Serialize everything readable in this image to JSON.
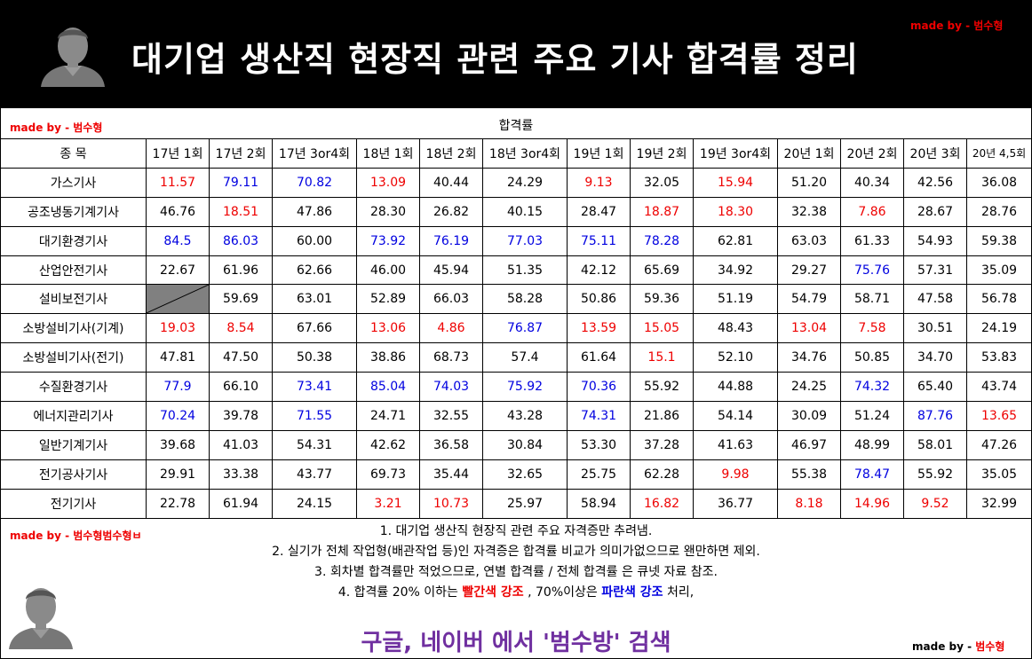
{
  "title": "대기업 생산직 현장직 관련 주요 기사 합격률 정리",
  "madeby": {
    "top_right": {
      "k": "made by - ",
      "v": "범수형"
    },
    "left_1": {
      "k": "made by - ",
      "v": "범수형"
    },
    "left_2": {
      "k": "made by - ",
      "v": "범수형범수형ㅂ"
    },
    "bottom_right": {
      "k": "made by - ",
      "v": "범수형"
    }
  },
  "subheading": "합격률",
  "table": {
    "name_header": "종 목",
    "columns": [
      "17년 1회",
      "17년 2회",
      "17년 3or4회",
      "18년 1회",
      "18년 2회",
      "18년 3or4회",
      "19년 1회",
      "19년 2회",
      "19년 3or4회",
      "20년 1회",
      "20년 2회",
      "20년 3회",
      "20년 4,5회"
    ],
    "rows": [
      {
        "name": "가스기사",
        "values": [
          "11.57",
          "79.11",
          "70.82",
          "13.09",
          "40.44",
          "24.29",
          "9.13",
          "32.05",
          "15.94",
          "51.20",
          "40.34",
          "42.56",
          "36.08"
        ]
      },
      {
        "name": "공조냉동기계기사",
        "values": [
          "46.76",
          "18.51",
          "47.86",
          "28.30",
          "26.82",
          "40.15",
          "28.47",
          "18.87",
          "18.30",
          "32.38",
          "7.86",
          "28.67",
          "28.76"
        ]
      },
      {
        "name": "대기환경기사",
        "values": [
          "84.5",
          "86.03",
          "60.00",
          "73.92",
          "76.19",
          "77.03",
          "75.11",
          "78.28",
          "62.81",
          "63.03",
          "61.33",
          "54.93",
          "59.38"
        ]
      },
      {
        "name": "산업안전기사",
        "values": [
          "22.67",
          "61.96",
          "62.66",
          "46.00",
          "45.94",
          "51.35",
          "42.12",
          "65.69",
          "34.92",
          "29.27",
          "75.76",
          "57.31",
          "35.09"
        ]
      },
      {
        "name": "설비보전기사",
        "values": [
          "",
          "59.69",
          "63.01",
          "52.89",
          "66.03",
          "58.28",
          "50.86",
          "59.36",
          "51.19",
          "54.79",
          "58.71",
          "47.58",
          "56.78"
        ]
      },
      {
        "name": "소방설비기사(기계)",
        "values": [
          "19.03",
          "8.54",
          "67.66",
          "13.06",
          "4.86",
          "76.87",
          "13.59",
          "15.05",
          "48.43",
          "13.04",
          "7.58",
          "30.51",
          "24.19"
        ]
      },
      {
        "name": "소방설비기사(전기)",
        "values": [
          "47.81",
          "47.50",
          "50.38",
          "38.86",
          "68.73",
          "57.4",
          "61.64",
          "15.1",
          "52.10",
          "34.76",
          "50.85",
          "34.70",
          "53.83"
        ]
      },
      {
        "name": "수질환경기사",
        "values": [
          "77.9",
          "66.10",
          "73.41",
          "85.04",
          "74.03",
          "75.92",
          "70.36",
          "55.92",
          "44.88",
          "24.25",
          "74.32",
          "65.40",
          "43.74"
        ]
      },
      {
        "name": "에너지관리기사",
        "values": [
          "70.24",
          "39.78",
          "71.55",
          "24.71",
          "32.55",
          "43.28",
          "74.31",
          "21.86",
          "54.14",
          "30.09",
          "51.24",
          "87.76",
          "13.65"
        ]
      },
      {
        "name": "일반기계기사",
        "values": [
          "39.68",
          "41.03",
          "54.31",
          "42.62",
          "36.58",
          "30.84",
          "53.30",
          "37.28",
          "41.63",
          "46.97",
          "48.99",
          "58.01",
          "47.26"
        ]
      },
      {
        "name": "전기공사기사",
        "values": [
          "29.91",
          "33.38",
          "43.77",
          "69.73",
          "35.44",
          "32.65",
          "25.75",
          "62.28",
          "9.98",
          "55.38",
          "78.47",
          "55.92",
          "35.05"
        ]
      },
      {
        "name": "전기기사",
        "values": [
          "22.78",
          "61.94",
          "24.15",
          "3.21",
          "10.73",
          "25.97",
          "58.94",
          "16.82",
          "36.77",
          "8.18",
          "14.96",
          "9.52",
          "32.99"
        ]
      }
    ]
  },
  "notes": {
    "n1": "1. 대기업 생산직 현장직 관련 주요 자격증만 추려냄.",
    "n2": "2. 실기가 전체 작업형(배관작업 등)인 자격증은 합격률 비교가 의미가없으므로 왠만하면 제외.",
    "n3": "3. 회차별 합격률만 적었으므로, 연별 합격률 / 전체 합격률 은 큐넷 자료 참조.",
    "n4_pre": "4. 합격률 20% 이하는 ",
    "n4_red": "빨간색 강조",
    "n4_mid": " , 70%이상은 ",
    "n4_blue": "파란색 강조",
    "n4_post": " 처리,"
  },
  "search_text": "구글, 네이버 에서 '범수방' 검색",
  "colors": {
    "low": "#e00000",
    "high": "#0000e0",
    "search": "#7030a0",
    "header_bg": "#000000",
    "na_cell": "#808080"
  },
  "icons": {
    "avatar": "person-avatar-icon"
  }
}
